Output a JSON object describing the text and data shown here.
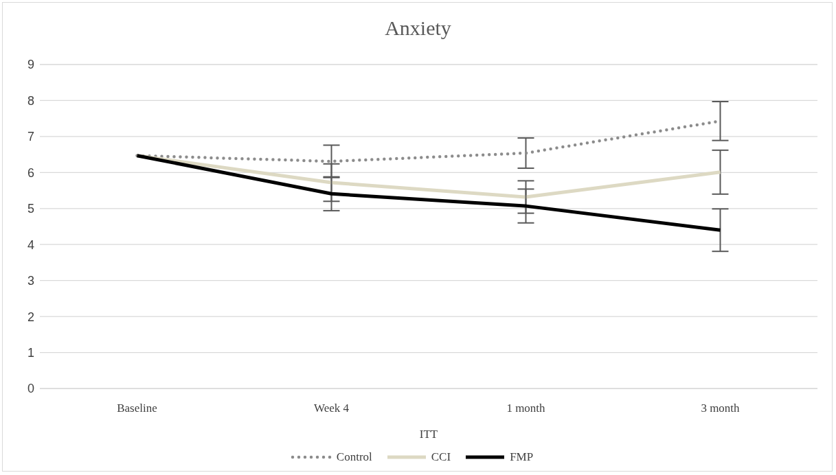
{
  "chart_data": {
    "type": "line",
    "title": "Anxiety",
    "xlabel": "ITT",
    "categories": [
      "Baseline",
      "Week 4",
      "1 month",
      "3 month"
    ],
    "series": [
      {
        "name": "Control",
        "color": "#8c8c8c",
        "line_style": "dotted",
        "values": [
          6.47,
          6.31,
          6.54,
          7.43
        ],
        "errors": [
          null,
          0.45,
          0.42,
          0.54
        ]
      },
      {
        "name": "CCI",
        "color": "#ddd9c3",
        "line_style": "solid",
        "values": [
          6.47,
          5.72,
          5.32,
          6.01
        ],
        "errors": [
          null,
          0.52,
          0.45,
          0.61
        ]
      },
      {
        "name": "FMP",
        "color": "#000000",
        "line_style": "solid",
        "values": [
          6.47,
          5.41,
          5.07,
          4.4
        ],
        "errors": [
          null,
          0.47,
          0.47,
          0.59
        ]
      }
    ],
    "ylim": [
      0,
      9
    ],
    "yticks": [
      0,
      1,
      2,
      3,
      4,
      5,
      6,
      7,
      8,
      9
    ],
    "grid": "y",
    "legend": "bottom",
    "marker": "none"
  }
}
